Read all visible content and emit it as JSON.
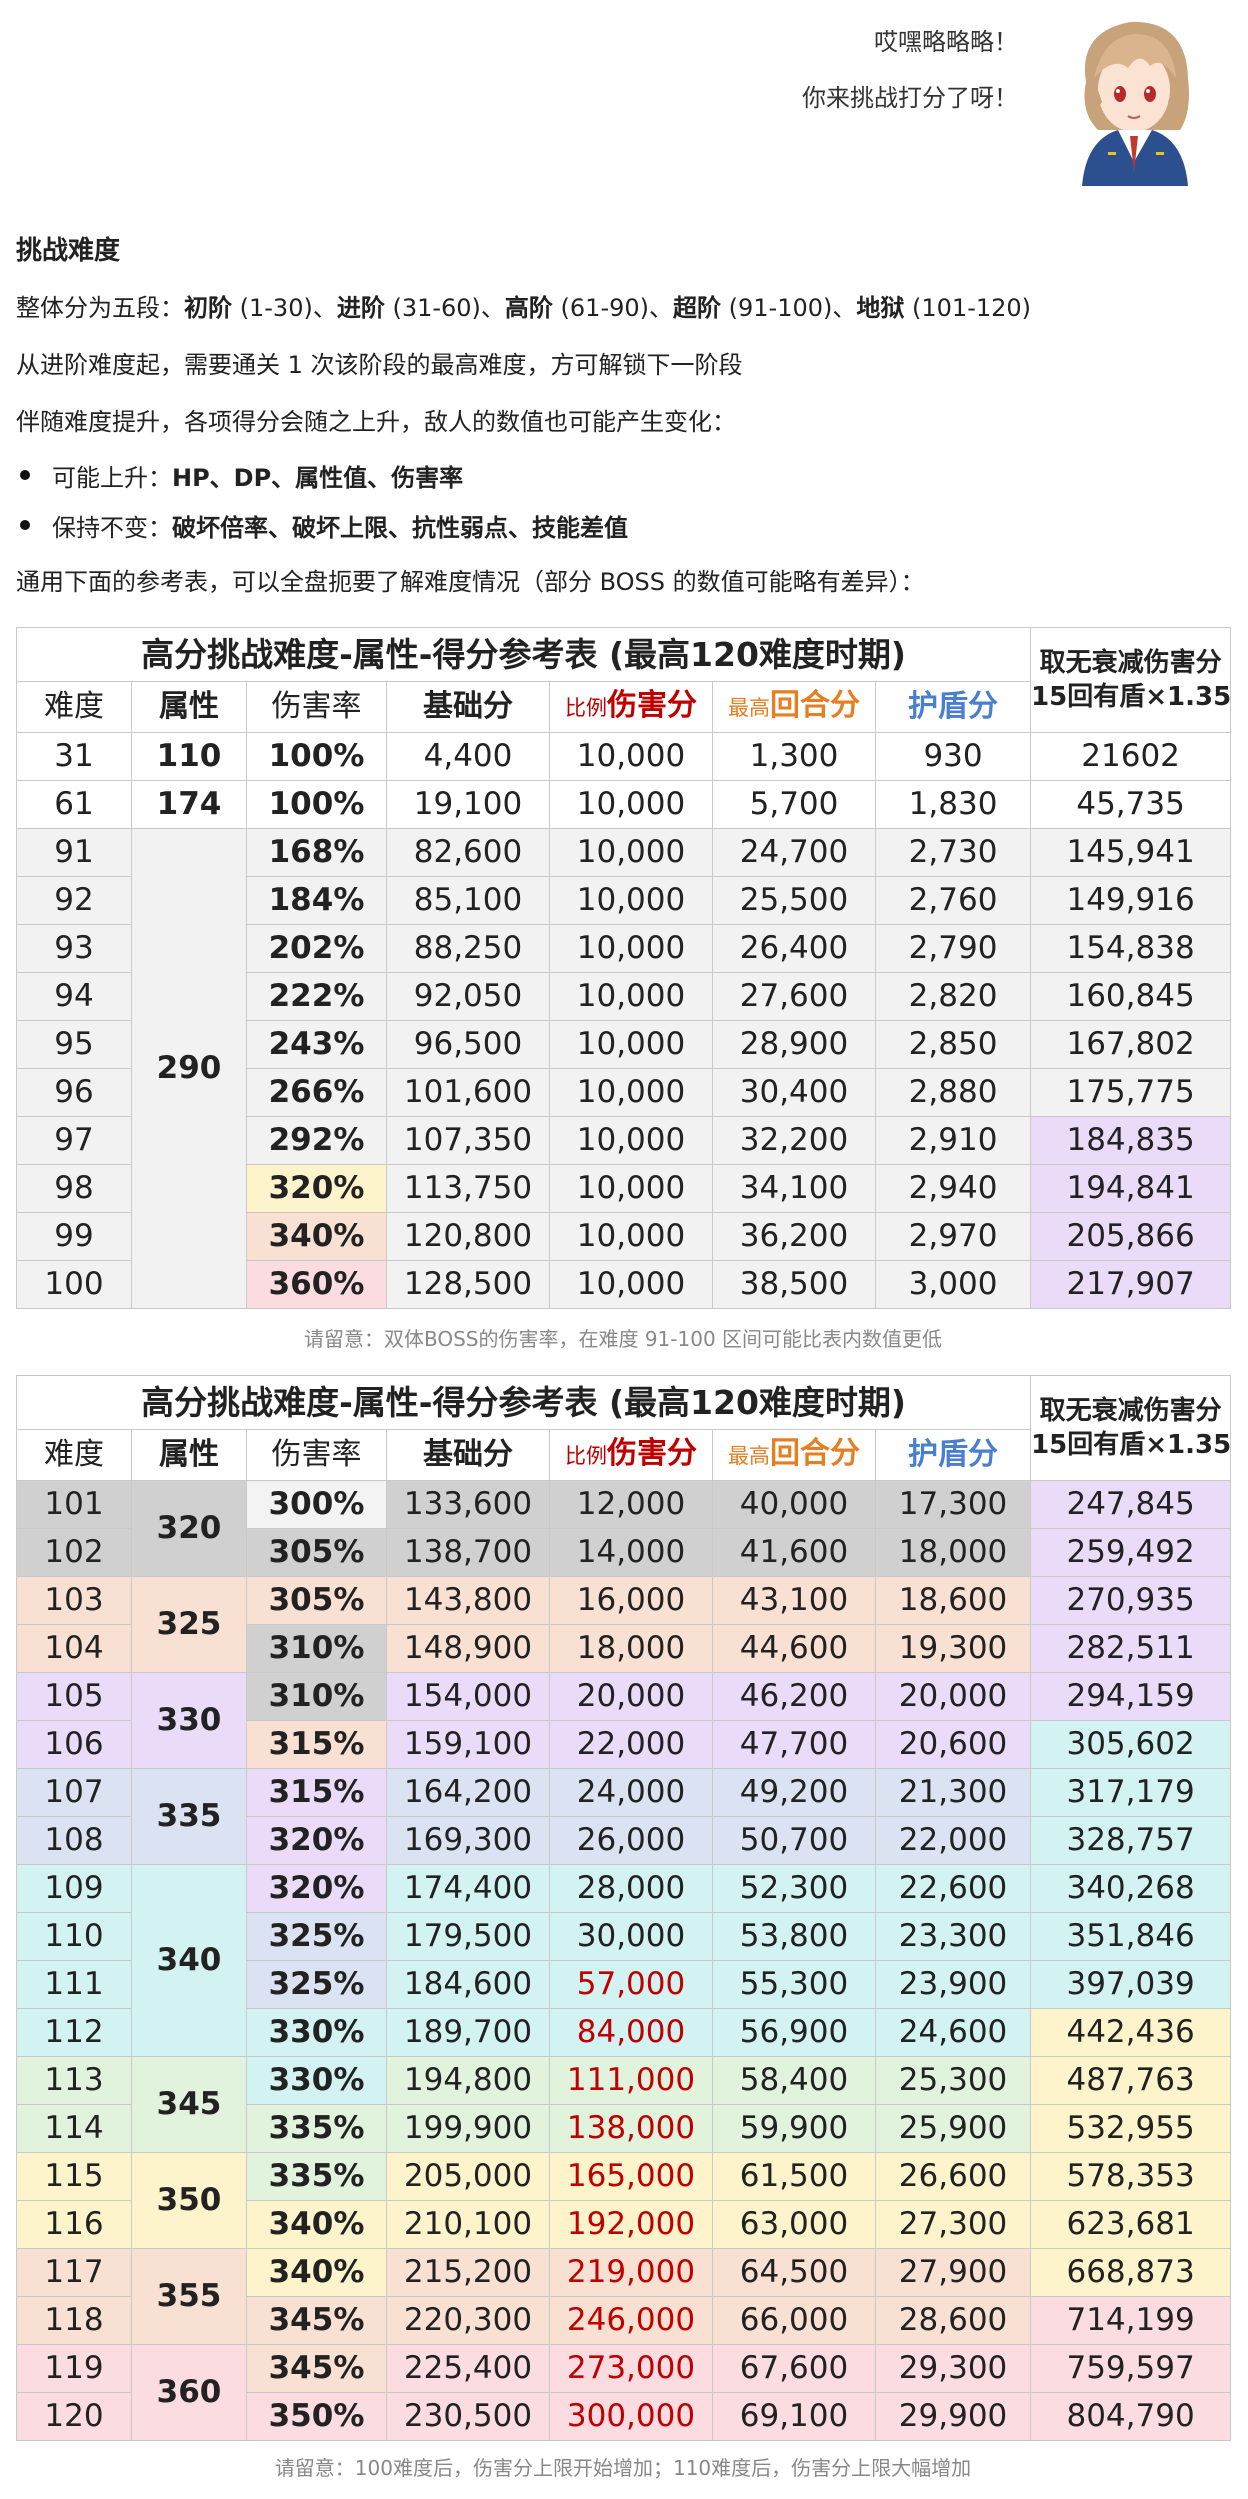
{
  "speech": {
    "line1": "哎嘿略略略！",
    "line2": "你来挑战打分了呀！"
  },
  "avatar_icon": "anime-girl-avatar",
  "intro": {
    "title": "挑战难度",
    "p1_prefix": "整体分为五段：",
    "tiers": [
      {
        "name": "初阶",
        "range": " (1-30)"
      },
      {
        "name": "进阶",
        "range": " (31-60)"
      },
      {
        "name": "高阶",
        "range": " (61-90)"
      },
      {
        "name": "超阶",
        "range": " (91-100)"
      },
      {
        "name": "地狱",
        "range": " (101-120)"
      }
    ],
    "sep": "、",
    "p2": "从进阶难度起，需要通关 1 次该阶段的最高难度，方可解锁下一阶段",
    "p3": "伴随难度提升，各项得分会随之上升，敌人的数值也可能产生变化：",
    "b1_label": "可能上升：",
    "b1_items": "HP、DP、属性值、伤害率",
    "b2_label": "保持不变：",
    "b2_items": "破坏倍率、破坏上限、抗性弱点、技能差值",
    "p4": "通用下面的参考表，可以全盘扼要了解难度情况（部分 BOSS 的数值可能略有差异）："
  },
  "table_common": {
    "title": "高分挑战难度-属性-得分参考表 (最高120难度时期)",
    "right_head_1": "取无衰减伤害分",
    "right_head_2": "15回有盾×1.35",
    "col_difficulty": "难度",
    "col_attr": "属性",
    "col_dmg_rate": "伤害率",
    "col_base": "基础分",
    "col_ratio_prefix": "比例",
    "col_ratio": "伤害分",
    "col_round_prefix": "最高",
    "col_round": "回合分",
    "col_shield": "护盾分"
  },
  "table1": {
    "rows": [
      {
        "d": "31",
        "attr": "110",
        "rate": "100%",
        "base": "4,400",
        "dmg": "10,000",
        "round": "1,300",
        "shield": "930",
        "max": "21602"
      },
      {
        "d": "61",
        "attr": "174",
        "rate": "100%",
        "base": "19,100",
        "dmg": "10,000",
        "round": "5,700",
        "shield": "1,830",
        "max": "45,735"
      },
      {
        "d": "91",
        "attr": "290",
        "rate": "168%",
        "base": "82,600",
        "dmg": "10,000",
        "round": "24,700",
        "shield": "2,730",
        "max": "145,941"
      },
      {
        "d": "92",
        "attr": "",
        "rate": "184%",
        "base": "85,100",
        "dmg": "10,000",
        "round": "25,500",
        "shield": "2,760",
        "max": "149,916"
      },
      {
        "d": "93",
        "attr": "",
        "rate": "202%",
        "base": "88,250",
        "dmg": "10,000",
        "round": "26,400",
        "shield": "2,790",
        "max": "154,838"
      },
      {
        "d": "94",
        "attr": "",
        "rate": "222%",
        "base": "92,050",
        "dmg": "10,000",
        "round": "27,600",
        "shield": "2,820",
        "max": "160,845"
      },
      {
        "d": "95",
        "attr": "",
        "rate": "243%",
        "base": "96,500",
        "dmg": "10,000",
        "round": "28,900",
        "shield": "2,850",
        "max": "167,802"
      },
      {
        "d": "96",
        "attr": "",
        "rate": "266%",
        "base": "101,600",
        "dmg": "10,000",
        "round": "30,400",
        "shield": "2,880",
        "max": "175,775"
      },
      {
        "d": "97",
        "attr": "",
        "rate": "292%",
        "base": "107,350",
        "dmg": "10,000",
        "round": "32,200",
        "shield": "2,910",
        "max": "184,835"
      },
      {
        "d": "98",
        "attr": "",
        "rate": "320%",
        "base": "113,750",
        "dmg": "10,000",
        "round": "34,100",
        "shield": "2,940",
        "max": "194,841"
      },
      {
        "d": "99",
        "attr": "",
        "rate": "340%",
        "base": "120,800",
        "dmg": "10,000",
        "round": "36,200",
        "shield": "2,970",
        "max": "205,866"
      },
      {
        "d": "100",
        "attr": "",
        "rate": "360%",
        "base": "128,500",
        "dmg": "10,000",
        "round": "38,500",
        "shield": "3,000",
        "max": "217,907"
      }
    ],
    "note": "请留意：双体BOSS的伤害率，在难度 91-100 区间可能比表内数值更低"
  },
  "table2": {
    "rows": [
      {
        "d": "101",
        "attr": "320",
        "rate": "300%",
        "base": "133,600",
        "dmg": "12,000",
        "round": "40,000",
        "shield": "17,300",
        "max": "247,845"
      },
      {
        "d": "102",
        "attr": "",
        "rate": "305%",
        "base": "138,700",
        "dmg": "14,000",
        "round": "41,600",
        "shield": "18,000",
        "max": "259,492"
      },
      {
        "d": "103",
        "attr": "325",
        "rate": "305%",
        "base": "143,800",
        "dmg": "16,000",
        "round": "43,100",
        "shield": "18,600",
        "max": "270,935"
      },
      {
        "d": "104",
        "attr": "",
        "rate": "310%",
        "base": "148,900",
        "dmg": "18,000",
        "round": "44,600",
        "shield": "19,300",
        "max": "282,511"
      },
      {
        "d": "105",
        "attr": "330",
        "rate": "310%",
        "base": "154,000",
        "dmg": "20,000",
        "round": "46,200",
        "shield": "20,000",
        "max": "294,159"
      },
      {
        "d": "106",
        "attr": "",
        "rate": "315%",
        "base": "159,100",
        "dmg": "22,000",
        "round": "47,700",
        "shield": "20,600",
        "max": "305,602"
      },
      {
        "d": "107",
        "attr": "335",
        "rate": "315%",
        "base": "164,200",
        "dmg": "24,000",
        "round": "49,200",
        "shield": "21,300",
        "max": "317,179"
      },
      {
        "d": "108",
        "attr": "",
        "rate": "320%",
        "base": "169,300",
        "dmg": "26,000",
        "round": "50,700",
        "shield": "22,000",
        "max": "328,757"
      },
      {
        "d": "109",
        "attr": "340",
        "rate": "320%",
        "base": "174,400",
        "dmg": "28,000",
        "round": "52,300",
        "shield": "22,600",
        "max": "340,268"
      },
      {
        "d": "110",
        "attr": "",
        "rate": "325%",
        "base": "179,500",
        "dmg": "30,000",
        "round": "53,800",
        "shield": "23,300",
        "max": "351,846"
      },
      {
        "d": "111",
        "attr": "",
        "rate": "325%",
        "base": "184,600",
        "dmg": "57,000",
        "round": "55,300",
        "shield": "23,900",
        "max": "397,039"
      },
      {
        "d": "112",
        "attr": "",
        "rate": "330%",
        "base": "189,700",
        "dmg": "84,000",
        "round": "56,900",
        "shield": "24,600",
        "max": "442,436"
      },
      {
        "d": "113",
        "attr": "345",
        "rate": "330%",
        "base": "194,800",
        "dmg": "111,000",
        "round": "58,400",
        "shield": "25,300",
        "max": "487,763"
      },
      {
        "d": "114",
        "attr": "",
        "rate": "335%",
        "base": "199,900",
        "dmg": "138,000",
        "round": "59,900",
        "shield": "25,900",
        "max": "532,955"
      },
      {
        "d": "115",
        "attr": "350",
        "rate": "335%",
        "base": "205,000",
        "dmg": "165,000",
        "round": "61,500",
        "shield": "26,600",
        "max": "578,353"
      },
      {
        "d": "116",
        "attr": "",
        "rate": "340%",
        "base": "210,100",
        "dmg": "192,000",
        "round": "63,000",
        "shield": "27,300",
        "max": "623,681"
      },
      {
        "d": "117",
        "attr": "355",
        "rate": "340%",
        "base": "215,200",
        "dmg": "219,000",
        "round": "64,500",
        "shield": "27,900",
        "max": "668,873"
      },
      {
        "d": "118",
        "attr": "",
        "rate": "345%",
        "base": "220,300",
        "dmg": "246,000",
        "round": "66,000",
        "shield": "28,600",
        "max": "714,199"
      },
      {
        "d": "119",
        "attr": "360",
        "rate": "345%",
        "base": "225,400",
        "dmg": "273,000",
        "round": "67,600",
        "shield": "29,300",
        "max": "759,597"
      },
      {
        "d": "120",
        "attr": "",
        "rate": "350%",
        "base": "230,500",
        "dmg": "300,000",
        "round": "69,100",
        "shield": "29,900",
        "max": "804,790"
      }
    ],
    "note": "请留意：100难度后，伤害分上限开始增加；110难度后，伤害分上限大幅增加"
  },
  "colors": {
    "gray": "#d0d0d0",
    "peach": "#f8e1d3",
    "lavender": "#eadcf8",
    "blue": "#dbe3f3",
    "cyan": "#d2f3f1",
    "green": "#e1f3dc",
    "yellow": "#fdf4cc",
    "pink": "#fadce1",
    "light_gray": "#f2f2f2",
    "red_text": "#c00000",
    "orange_text": "#e67e22",
    "blue_text": "#4a7fd0"
  }
}
